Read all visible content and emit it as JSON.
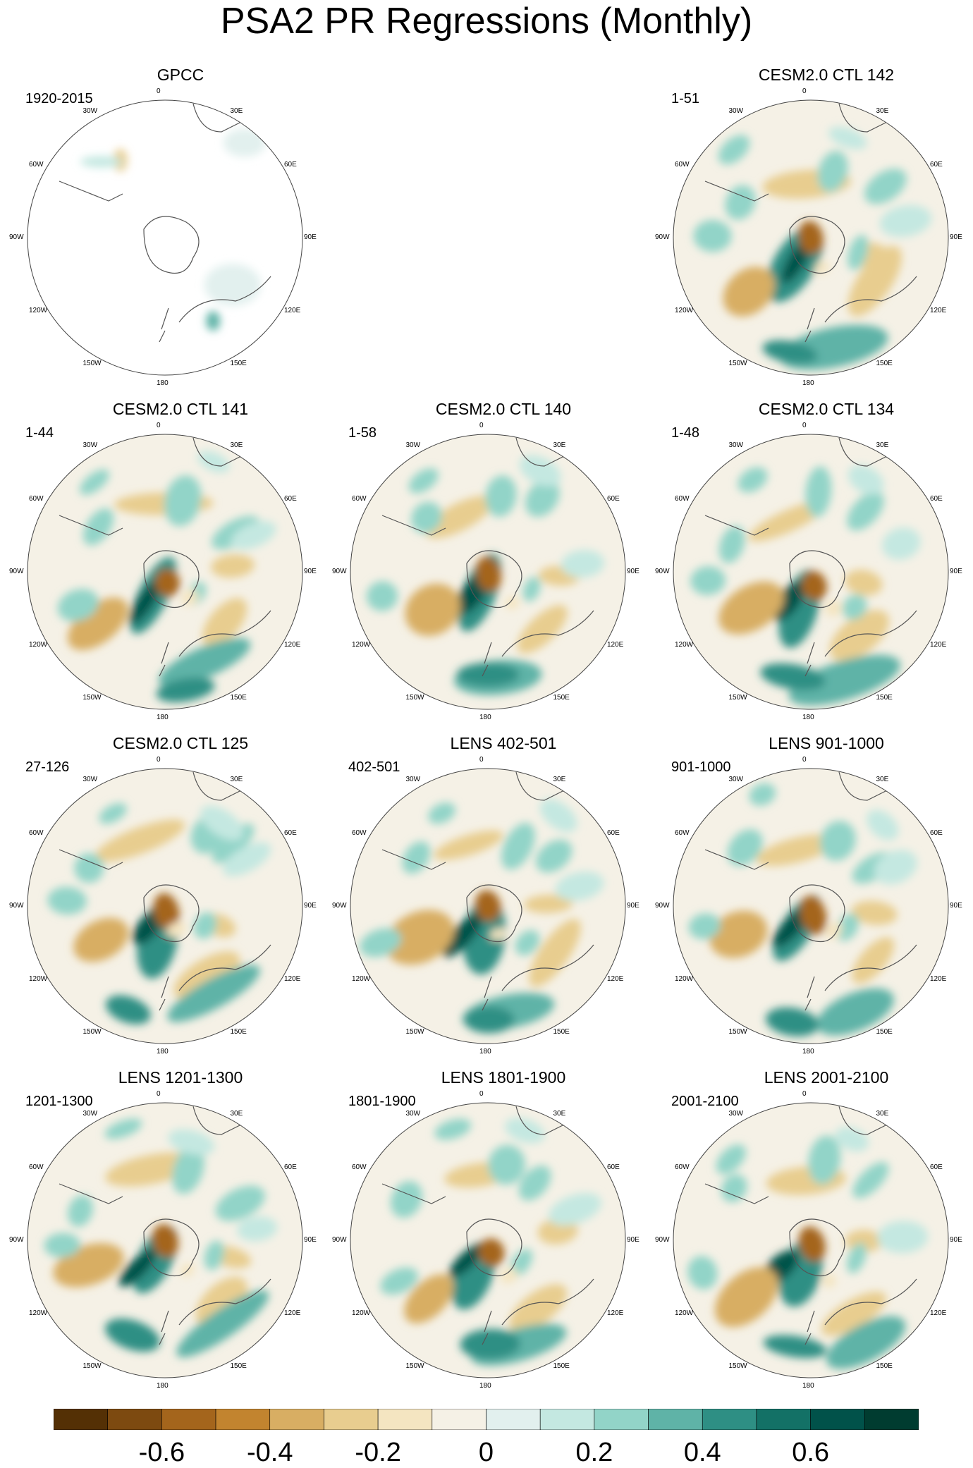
{
  "title": "PSA2 PR Regressions (Monthly)",
  "chart_data": {
    "type": "heatmap",
    "projection": "south-polar-stereographic",
    "longitude_labels": [
      "0",
      "30E",
      "60E",
      "90E",
      "120E",
      "150E",
      "180",
      "150W",
      "120W",
      "90W",
      "60W",
      "30W"
    ],
    "panels": [
      {
        "title": "GPCC",
        "period": "1920-2015",
        "empty": false,
        "observed": true
      },
      {
        "title": "",
        "period": "",
        "empty": true
      },
      {
        "title": "CESM2.0 CTL 142",
        "period": "1-51",
        "empty": false
      },
      {
        "title": "CESM2.0 CTL 141",
        "period": "1-44",
        "empty": false
      },
      {
        "title": "CESM2.0 CTL 140",
        "period": "1-58",
        "empty": false
      },
      {
        "title": "CESM2.0 CTL 134",
        "period": "1-48",
        "empty": false
      },
      {
        "title": "CESM2.0 CTL 125",
        "period": "27-126",
        "empty": false
      },
      {
        "title": "LENS 402-501",
        "period": "402-501",
        "empty": false
      },
      {
        "title": "LENS 901-1000",
        "period": "901-1000",
        "empty": false
      },
      {
        "title": "LENS 1201-1300",
        "period": "1201-1300",
        "empty": false
      },
      {
        "title": "LENS 1801-1900",
        "period": "1801-1900",
        "empty": false
      },
      {
        "title": "LENS 2001-2100",
        "period": "2001-2100",
        "empty": false
      }
    ],
    "colorbar": {
      "levels": [
        -0.7,
        -0.6,
        -0.5,
        -0.4,
        -0.3,
        -0.2,
        -0.1,
        0,
        0.1,
        0.2,
        0.3,
        0.4,
        0.5,
        0.6,
        0.7
      ],
      "colors": [
        "#543005",
        "#7d4a10",
        "#a4651c",
        "#c2842f",
        "#d8ae63",
        "#e8cd8f",
        "#f4e5c1",
        "#f5f1e6",
        "#e2f0ee",
        "#c4e8e1",
        "#92d4c8",
        "#5fb3a7",
        "#2e8f84",
        "#137166",
        "#01524a",
        "#003c30"
      ],
      "tick_labels": [
        "-0.6",
        "-0.4",
        "-0.2",
        "0",
        "0.2",
        "0.4",
        "0.6"
      ],
      "tick_values": [
        -0.6,
        -0.4,
        -0.2,
        0,
        0.2,
        0.4,
        0.6
      ]
    }
  }
}
